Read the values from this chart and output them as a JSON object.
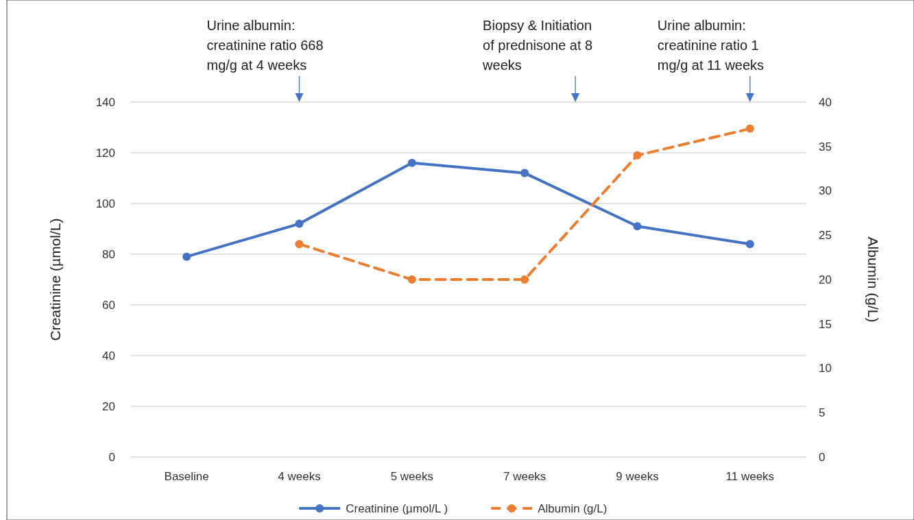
{
  "chart_data": {
    "type": "line",
    "categories": [
      "Baseline",
      "4 weeks",
      "5 weeks",
      "7 weeks",
      "9 weeks",
      "11 weeks"
    ],
    "ylabel": "Creatinine (µmol/L)",
    "y2label": "Albumin (g/L)",
    "ylim": [
      0,
      140
    ],
    "yticks": [
      0,
      20,
      40,
      60,
      80,
      100,
      120,
      140
    ],
    "y2lim": [
      0,
      40
    ],
    "y2ticks": [
      0,
      5,
      10,
      15,
      20,
      25,
      30,
      35,
      40
    ],
    "series": [
      {
        "name": "Creatinine (µmol/L )",
        "color": "#4472c4",
        "values": [
          79,
          92,
          116,
          112,
          91,
          84
        ],
        "line_style": "solid"
      },
      {
        "name": "Albumin (g/L)",
        "color": "#ed7d31",
        "values": [
          null,
          24,
          20,
          20,
          34,
          37
        ],
        "axis": "y2",
        "line_style": "dashed"
      }
    ],
    "annotations": [
      "Urine albumin:\ncreatinine ratio 668\nmg/g at 4 weeks",
      "Biopsy & Initiation\nof prednisone at 8\nweeks",
      "Urine albumin:\ncreatinine ratio 1\nmg/g at 11 weeks"
    ],
    "grid": "y",
    "legend": "bottom",
    "marker": "circle"
  }
}
